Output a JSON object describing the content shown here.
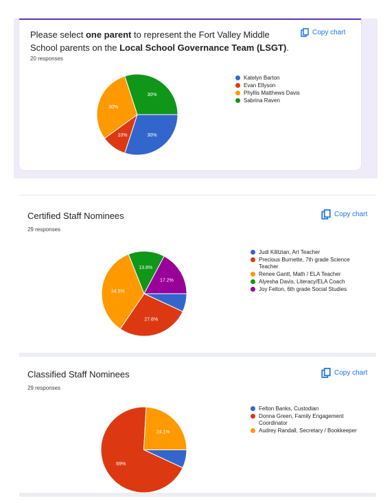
{
  "colors": {
    "blue": "#3366cc",
    "red": "#dc3912",
    "orange": "#ff9900",
    "green": "#109618",
    "purple": "#990099",
    "accent": "#1a73e8",
    "form_accent": "#673ab7"
  },
  "copy_label": "Copy chart",
  "q1": {
    "title_parts": [
      {
        "text": "Please select ",
        "bold": false
      },
      {
        "text": "one parent",
        "bold": true
      },
      {
        "text": " to represent the Fort Valley Middle School parents on the ",
        "bold": false
      },
      {
        "text": "Local School Governance Team (LSGT)",
        "bold": true
      },
      {
        "text": ".",
        "bold": false
      }
    ],
    "responses": "20 responses"
  },
  "q2": {
    "title": "Certified Staff Nominees",
    "responses": "29 responses"
  },
  "q3": {
    "title": "Classified Staff Nominees",
    "responses": "29 responses"
  },
  "chart_data": [
    {
      "type": "pie",
      "slices": [
        {
          "label": "Katelyn Barton",
          "value": 30,
          "color": "#3366cc",
          "text": "30%"
        },
        {
          "label": "Evan Ellyson",
          "value": 10,
          "color": "#dc3912",
          "text": "10%"
        },
        {
          "label": "Phyllis Matthews Davis",
          "value": 30,
          "color": "#ff9900",
          "text": "30%"
        },
        {
          "label": "Sabrina Raven",
          "value": 30,
          "color": "#109618",
          "text": "30%"
        }
      ]
    },
    {
      "type": "pie",
      "slices": [
        {
          "label": "Judi Kilitzian, Art Teacher",
          "value": 6.9,
          "color": "#3366cc",
          "text": ""
        },
        {
          "label": "Precious Burnette, 7th grade Science Teacher",
          "value": 27.6,
          "color": "#dc3912",
          "text": "27.6%"
        },
        {
          "label": "Renee Gantt, Math / ELA Teacher",
          "value": 34.5,
          "color": "#ff9900",
          "text": "34.5%"
        },
        {
          "label": "Alyesha Davis, Literacy/ELA Coach",
          "value": 13.8,
          "color": "#109618",
          "text": "13.8%"
        },
        {
          "label": "Joy Felton, 6th grade Social Studies",
          "value": 17.2,
          "color": "#990099",
          "text": "17.2%"
        }
      ]
    },
    {
      "type": "pie",
      "slices": [
        {
          "label": "Felton Banks, Custodian",
          "value": 6.9,
          "color": "#3366cc",
          "text": ""
        },
        {
          "label": "Donna Green, Family Engagement Coordinator",
          "value": 69,
          "color": "#dc3912",
          "text": "69%"
        },
        {
          "label": "Audrey Randall, Secretary / Bookkeeper",
          "value": 24.1,
          "color": "#ff9900",
          "text": "24.1%"
        }
      ]
    }
  ]
}
